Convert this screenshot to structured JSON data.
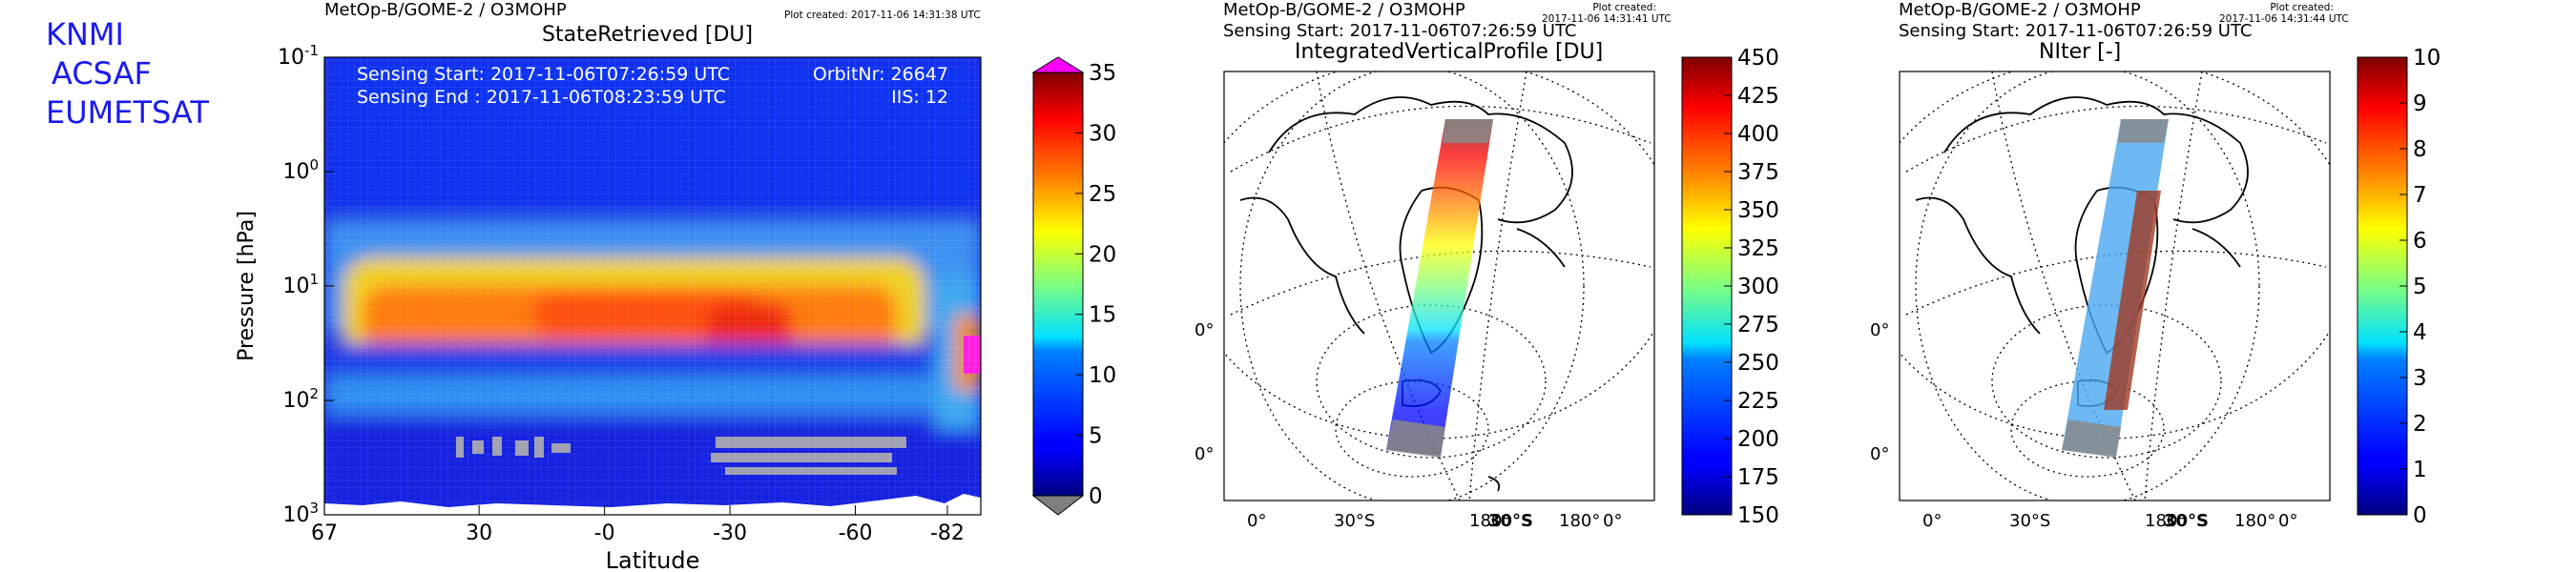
{
  "logo_lines": [
    "KNMI",
    "ACSAF",
    "EUMETSAT"
  ],
  "chart_data": [
    {
      "type": "heatmap",
      "source": "MetOp-B/GOME-2 / O3MOHP",
      "plot_created": "Plot created: 2017-11-06 14:31:38 UTC",
      "title": "StateRetrieved [DU]",
      "xlabel": "Latitude",
      "ylabel": "Pressure [hPa]",
      "x_ticks": [
        "67",
        "30",
        "-0",
        "-30",
        "-60",
        "-82"
      ],
      "x_tick_values": [
        67,
        30,
        0,
        -30,
        -60,
        -82
      ],
      "xlim": [
        67,
        -90
      ],
      "y_scale": "log",
      "ylim": [
        1000,
        0.1
      ],
      "y_ticks": [
        {
          "base": "10",
          "exp": "-1"
        },
        {
          "base": "10",
          "exp": "0"
        },
        {
          "base": "10",
          "exp": "1"
        },
        {
          "base": "10",
          "exp": "2"
        },
        {
          "base": "10",
          "exp": "3"
        }
      ],
      "annotations": {
        "sensing_start": "Sensing Start: 2017-11-06T07:26:59 UTC",
        "sensing_end": "Sensing End  : 2017-11-06T08:23:59 UTC",
        "orbit": "OrbitNr: 26647",
        "iis": "IIS: 12"
      },
      "colorbar": {
        "min": 0,
        "max": 35,
        "ticks": [
          "35",
          "30",
          "25",
          "20",
          "15",
          "10",
          "5",
          "0"
        ],
        "tick_values": [
          35,
          30,
          25,
          20,
          15,
          10,
          5,
          0
        ],
        "over_color": "#ff00ff",
        "under_color": "#7f7f7f",
        "colormap": "jet"
      },
      "features": [
        {
          "name": "ozone maximum layer",
          "pressure_hPa": [
            15,
            60
          ],
          "lat_range": [
            60,
            -72
          ],
          "value_DU": 26
        },
        {
          "name": "high ozone core",
          "pressure_hPa": [
            30,
            45
          ],
          "lat_range": [
            -85,
            -90
          ],
          "value_DU": 36
        }
      ]
    },
    {
      "type": "map",
      "source": "MetOp-B/GOME-2 / O3MOHP",
      "plot_created": [
        "Plot created:",
        "2017-11-06 14:31:41 UTC"
      ],
      "sensing_start": "Sensing Start: 2017-11-06T07:26:59 UTC",
      "title": "IntegratedVerticalProfile [DU]",
      "lon_labels": [
        "0°",
        "30°S",
        "180°",
        "30°S",
        "180°",
        "0°"
      ],
      "lat_labels": [
        "0°",
        "0°"
      ],
      "colorbar": {
        "min": 150,
        "max": 450,
        "ticks": [
          "450",
          "425",
          "400",
          "375",
          "350",
          "325",
          "300",
          "275",
          "250",
          "225",
          "200",
          "175",
          "150"
        ],
        "tick_values": [
          450,
          425,
          400,
          375,
          350,
          325,
          300,
          275,
          250,
          225,
          200,
          175,
          150
        ],
        "colormap": "jet"
      }
    },
    {
      "type": "map",
      "source": "MetOp-B/GOME-2 / O3MOHP",
      "plot_created": [
        "Plot created:",
        "2017-11-06 14:31:44 UTC"
      ],
      "sensing_start": "Sensing Start: 2017-11-06T07:26:59 UTC",
      "title": "NIter [-]",
      "lon_labels": [
        "0°",
        "30°S",
        "180°",
        "30°S",
        "180°",
        "0°"
      ],
      "lat_labels": [
        "0°",
        "0°"
      ],
      "colorbar": {
        "min": 0,
        "max": 10,
        "ticks": [
          "10",
          "9",
          "8",
          "7",
          "6",
          "5",
          "4",
          "3",
          "2",
          "1",
          "0"
        ],
        "tick_values": [
          10,
          9,
          8,
          7,
          6,
          5,
          4,
          3,
          2,
          1,
          0
        ],
        "colormap": "jet"
      }
    }
  ]
}
